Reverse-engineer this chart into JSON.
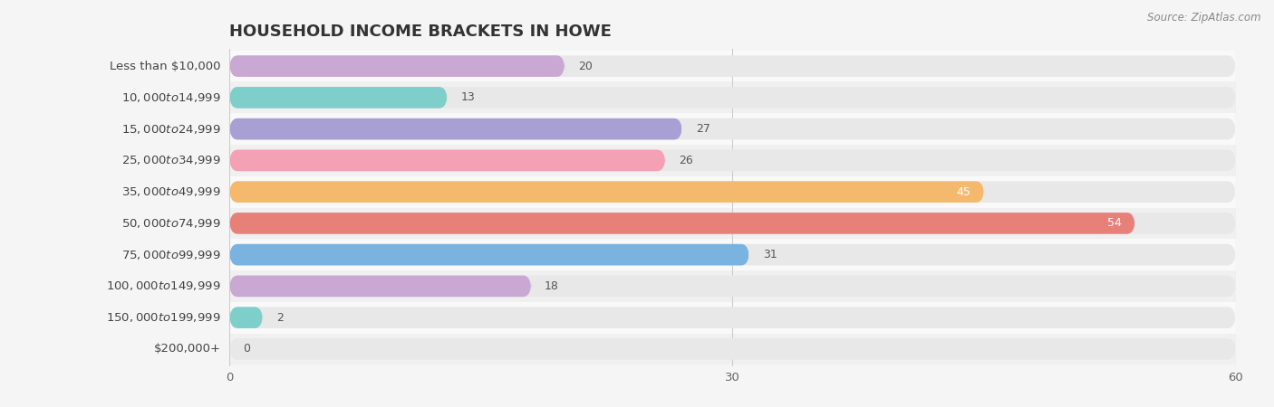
{
  "title": "HOUSEHOLD INCOME BRACKETS IN HOWE",
  "source": "Source: ZipAtlas.com",
  "categories": [
    "Less than $10,000",
    "$10,000 to $14,999",
    "$15,000 to $24,999",
    "$25,000 to $34,999",
    "$35,000 to $49,999",
    "$50,000 to $74,999",
    "$75,000 to $99,999",
    "$100,000 to $149,999",
    "$150,000 to $199,999",
    "$200,000+"
  ],
  "values": [
    20,
    13,
    27,
    26,
    45,
    54,
    31,
    18,
    2,
    0
  ],
  "bar_colors": [
    "#c9a8d4",
    "#7ececa",
    "#a89fd4",
    "#f4a0b5",
    "#f5b96e",
    "#e8807a",
    "#7ab3e0",
    "#c9a8d4",
    "#7ececa",
    "#a89fd4"
  ],
  "row_colors": [
    "#ffffff",
    "#f0f0f0"
  ],
  "xlim": [
    0,
    60
  ],
  "xticks": [
    0,
    30,
    60
  ],
  "background_color": "#f5f5f5",
  "bar_bg_color": "#e8e8e8",
  "title_fontsize": 13,
  "label_fontsize": 9.5,
  "value_fontsize": 9,
  "value_inside_threshold": 40
}
